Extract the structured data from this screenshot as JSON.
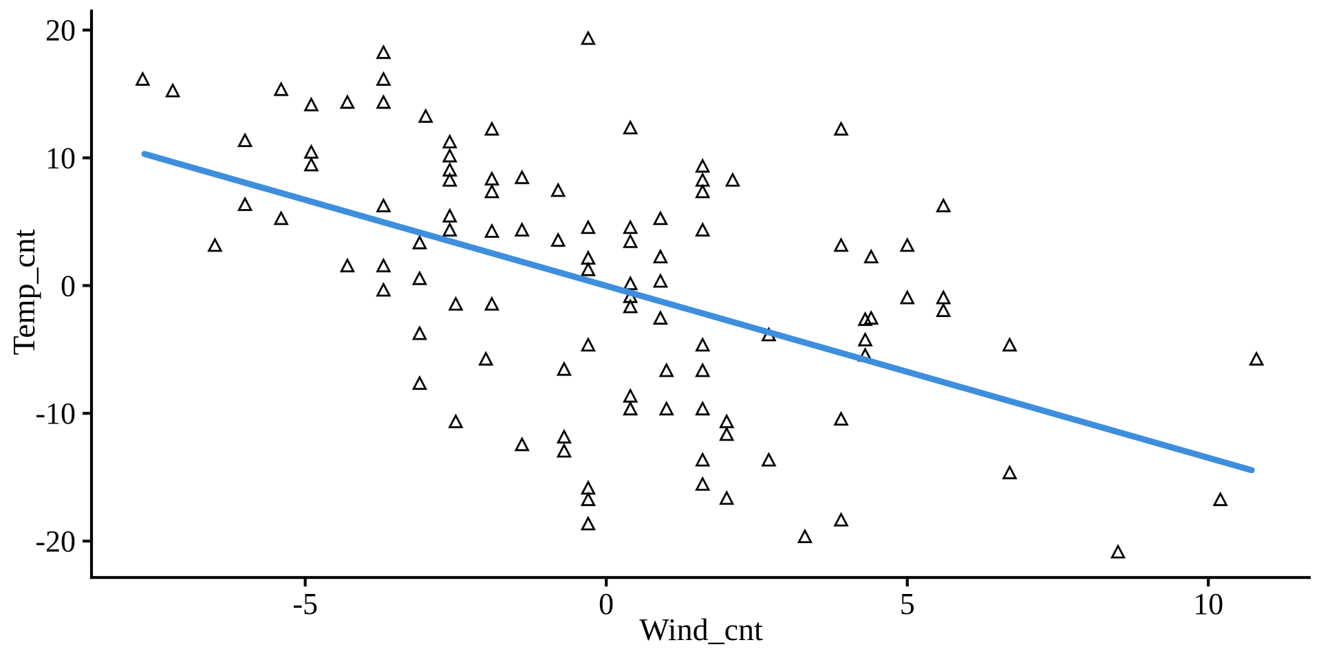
{
  "chart_data": {
    "type": "scatter",
    "title": "",
    "xlabel": "Wind_cnt",
    "ylabel": "Temp_cnt",
    "x_ticks": [
      -5,
      0,
      5,
      10
    ],
    "y_ticks": [
      -20,
      -10,
      0,
      10,
      20
    ],
    "xlim": [
      -8.55,
      11.7
    ],
    "ylim": [
      -22.85,
      21.6
    ],
    "grid": false,
    "legend": "none",
    "marker": {
      "shape": "open-triangle",
      "color": "#000000",
      "size": 17,
      "stroke_width": 2.8
    },
    "points": [
      [
        -7.7,
        16.1
      ],
      [
        -7.2,
        15.2
      ],
      [
        -5.4,
        15.3
      ],
      [
        -4.9,
        14.1
      ],
      [
        -6.0,
        11.3
      ],
      [
        -4.9,
        10.4
      ],
      [
        -4.9,
        9.4
      ],
      [
        -6.0,
        6.3
      ],
      [
        -5.4,
        5.2
      ],
      [
        -6.5,
        3.1
      ],
      [
        -3.7,
        18.2
      ],
      [
        -0.3,
        19.3
      ],
      [
        -3.7,
        16.1
      ],
      [
        -4.3,
        14.3
      ],
      [
        -3.7,
        14.3
      ],
      [
        -3.0,
        13.2
      ],
      [
        -1.9,
        12.2
      ],
      [
        0.4,
        12.3
      ],
      [
        -2.6,
        11.2
      ],
      [
        -2.6,
        10.1
      ],
      [
        -2.6,
        9.0
      ],
      [
        -2.6,
        8.2
      ],
      [
        -1.9,
        8.3
      ],
      [
        -1.9,
        7.3
      ],
      [
        -1.4,
        8.4
      ],
      [
        -0.8,
        7.4
      ],
      [
        -3.7,
        6.2
      ],
      [
        -2.6,
        5.4
      ],
      [
        -2.6,
        4.3
      ],
      [
        -1.9,
        4.2
      ],
      [
        -1.4,
        4.3
      ],
      [
        -0.8,
        3.5
      ],
      [
        -0.3,
        4.5
      ],
      [
        0.4,
        4.5
      ],
      [
        0.4,
        3.4
      ],
      [
        -3.1,
        3.3
      ],
      [
        -4.3,
        1.5
      ],
      [
        -3.7,
        1.5
      ],
      [
        -3.1,
        0.5
      ],
      [
        -3.7,
        -0.4
      ],
      [
        -2.5,
        -1.5
      ],
      [
        -1.9,
        -1.5
      ],
      [
        -0.3,
        2.1
      ],
      [
        -0.3,
        1.2
      ],
      [
        0.4,
        0.1
      ],
      [
        0.4,
        -0.9
      ],
      [
        0.4,
        -1.7
      ],
      [
        3.9,
        12.2
      ],
      [
        1.6,
        9.3
      ],
      [
        1.6,
        8.2
      ],
      [
        1.6,
        7.3
      ],
      [
        2.1,
        8.2
      ],
      [
        5.6,
        6.2
      ],
      [
        0.9,
        5.2
      ],
      [
        1.6,
        4.3
      ],
      [
        3.9,
        3.1
      ],
      [
        4.4,
        2.2
      ],
      [
        5.0,
        3.1
      ],
      [
        0.9,
        2.2
      ],
      [
        0.9,
        0.3
      ],
      [
        5.0,
        -1.0
      ],
      [
        5.6,
        -1.0
      ],
      [
        5.6,
        -2.0
      ],
      [
        4.4,
        -2.6
      ],
      [
        0.9,
        -2.6
      ],
      [
        -3.1,
        -3.8
      ],
      [
        -2.0,
        -5.8
      ],
      [
        -3.1,
        -7.7
      ],
      [
        -0.7,
        -6.6
      ],
      [
        -0.3,
        -4.7
      ],
      [
        -2.5,
        -10.7
      ],
      [
        -1.4,
        -12.5
      ],
      [
        -0.7,
        -11.9
      ],
      [
        -0.7,
        -13.0
      ],
      [
        -0.3,
        -15.9
      ],
      [
        -0.3,
        -16.8
      ],
      [
        -0.3,
        -18.7
      ],
      [
        0.4,
        -8.7
      ],
      [
        0.4,
        -9.7
      ],
      [
        1.6,
        -4.7
      ],
      [
        1.0,
        -6.7
      ],
      [
        1.6,
        -6.7
      ],
      [
        2.7,
        -3.9
      ],
      [
        1.0,
        -9.7
      ],
      [
        1.6,
        -9.7
      ],
      [
        2.0,
        -10.7
      ],
      [
        2.0,
        -11.7
      ],
      [
        1.6,
        -13.7
      ],
      [
        2.7,
        -13.7
      ],
      [
        1.6,
        -15.6
      ],
      [
        2.0,
        -16.7
      ],
      [
        3.9,
        -18.4
      ],
      [
        3.3,
        -19.7
      ],
      [
        3.9,
        -10.5
      ],
      [
        4.3,
        -2.7
      ],
      [
        4.3,
        -4.3
      ],
      [
        4.3,
        -5.5
      ],
      [
        6.7,
        -4.7
      ],
      [
        10.8,
        -5.8
      ],
      [
        6.7,
        -14.7
      ],
      [
        10.2,
        -16.8
      ],
      [
        8.5,
        -20.9
      ]
    ],
    "trend_line": {
      "type": "linear",
      "x1": -7.67,
      "y1": 10.3,
      "x2": 10.72,
      "y2": -14.45,
      "color": "#3E8EDE",
      "stroke_width": 9
    }
  },
  "colors": {
    "background": "#FFFFFF",
    "axis": "#000000",
    "text": "#000000",
    "trend": "#3E8EDE"
  }
}
